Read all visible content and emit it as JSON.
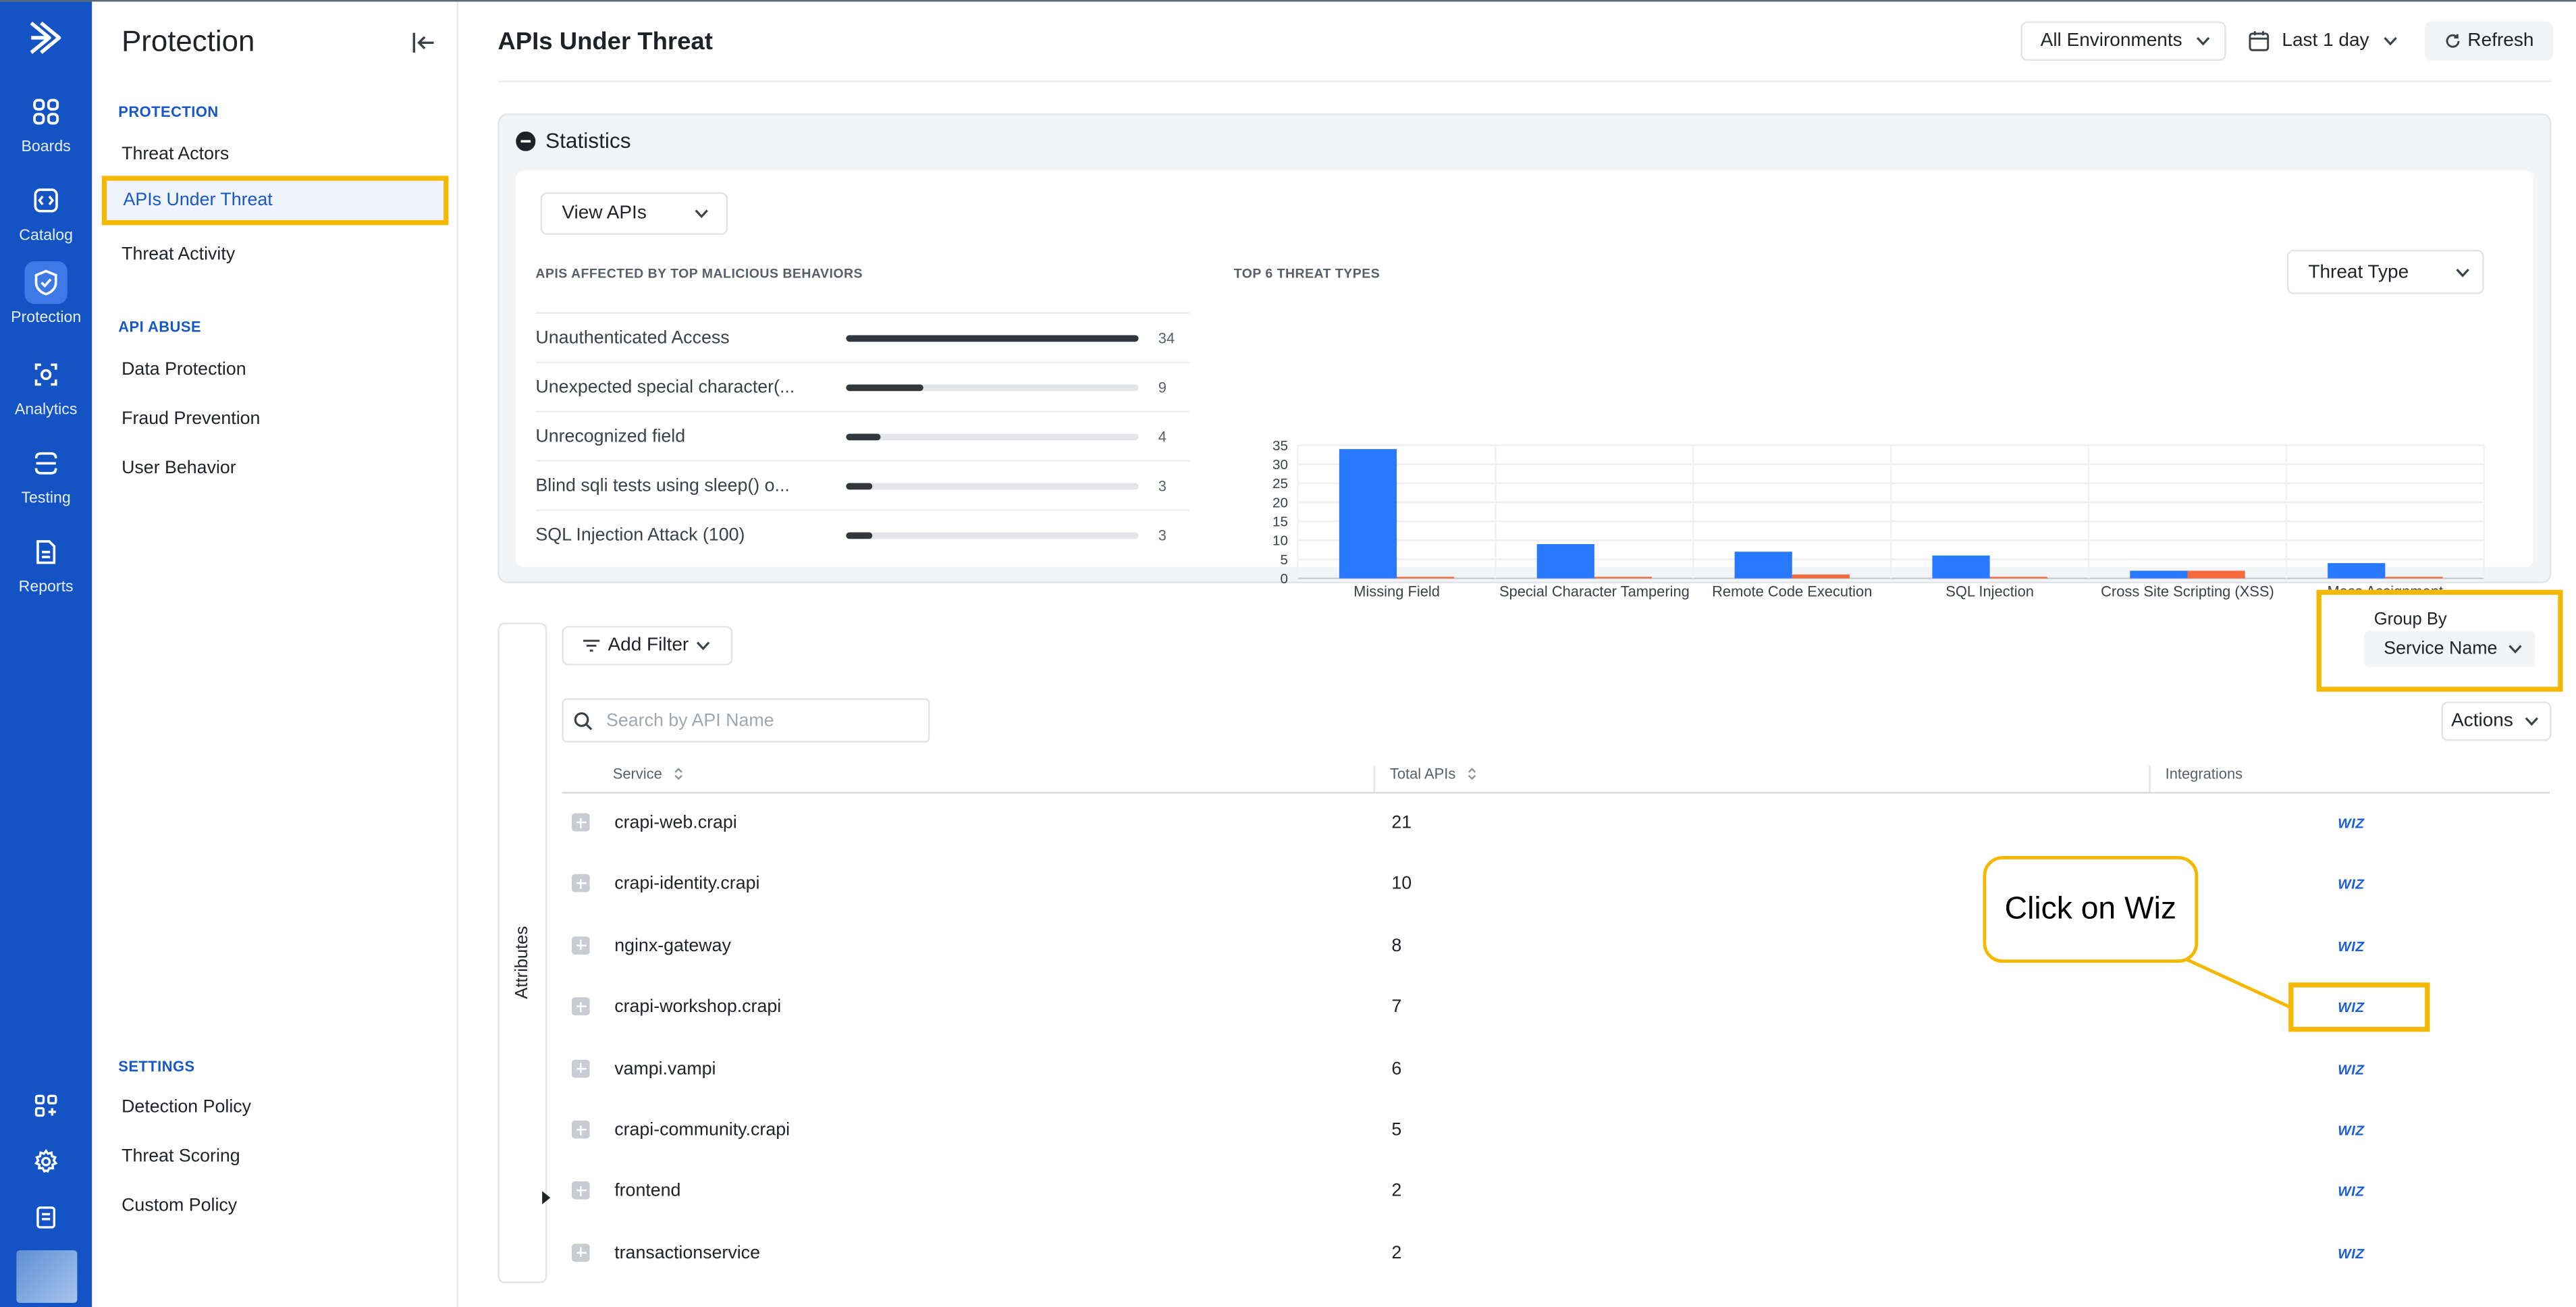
{
  "rail": {
    "items": [
      {
        "label": "Boards",
        "icon": "grid-icon"
      },
      {
        "label": "Catalog",
        "icon": "catalog-icon"
      },
      {
        "label": "Protection",
        "icon": "shield-icon"
      },
      {
        "label": "Analytics",
        "icon": "analytics-icon"
      },
      {
        "label": "Testing",
        "icon": "testing-icon"
      },
      {
        "label": "Reports",
        "icon": "reports-icon"
      }
    ],
    "active": "Protection",
    "bottom_icons": [
      "add-widget-icon",
      "gear-icon",
      "docs-icon"
    ],
    "colors": {
      "rail_bg": "#1453c4",
      "active_bg": "#3d7ae6"
    }
  },
  "sidenav": {
    "title": "Protection",
    "sections": [
      {
        "label": "PROTECTION",
        "items": [
          "Threat Actors",
          "APIs Under Threat",
          "Threat Activity"
        ]
      },
      {
        "label": "API ABUSE",
        "items": [
          "Data Protection",
          "Fraud Prevention",
          "User Behavior"
        ]
      },
      {
        "label": "SETTINGS",
        "items": [
          "Detection Policy",
          "Threat Scoring",
          "Custom Policy"
        ]
      }
    ],
    "active_item": "APIs Under Threat"
  },
  "header": {
    "title": "APIs Under Threat",
    "environment": "All Environments",
    "time_range": "Last 1 day",
    "refresh": "Refresh"
  },
  "statistics": {
    "title": "Statistics",
    "view_select": "View APIs",
    "behaviors_label": "APIS AFFECTED BY TOP MALICIOUS BEHAVIORS",
    "behaviors": [
      {
        "name": "Unauthenticated Access",
        "count": "34",
        "fraction": 1.0
      },
      {
        "name": "Unexpected special character(...",
        "count": "9",
        "fraction": 0.265
      },
      {
        "name": "Unrecognized field",
        "count": "4",
        "fraction": 0.118
      },
      {
        "name": "Blind sqli tests using sleep() o...",
        "count": "3",
        "fraction": 0.088
      },
      {
        "name": "SQL Injection Attack (100)",
        "count": "3",
        "fraction": 0.088
      }
    ],
    "threat_types_label": "TOP 6 THREAT TYPES",
    "threat_type_select": "Threat Type"
  },
  "chart_data": {
    "type": "bar",
    "categories": [
      "Missing Field",
      "Special Character Tampering",
      "Remote Code Execution",
      "SQL Injection",
      "Cross Site Scripting (XSS)",
      "Mass Assignment"
    ],
    "series": [
      {
        "values": [
          34,
          9,
          7,
          6,
          2,
          4
        ],
        "color": "#2979ff"
      },
      {
        "values": [
          0.4,
          0.4,
          1,
          0.4,
          2,
          0.4
        ],
        "color": "#f4511e"
      }
    ],
    "yticks": [
      "0",
      "5",
      "10",
      "15",
      "20",
      "25",
      "30",
      "35"
    ],
    "ylim": [
      0,
      35
    ],
    "grid": true
  },
  "table": {
    "add_filter": "Add Filter",
    "search_placeholder": "Search by API Name",
    "actions": "Actions",
    "group_by_label": "Group By",
    "group_by_value": "Service Name",
    "attributes_tab": "Attributes",
    "columns": [
      "Service",
      "Total APIs",
      "Integrations"
    ],
    "rows": [
      {
        "service": "crapi-web.crapi",
        "total": "21",
        "integration": "WIZ"
      },
      {
        "service": "crapi-identity.crapi",
        "total": "10",
        "integration": "WIZ"
      },
      {
        "service": "nginx-gateway",
        "total": "8",
        "integration": "WIZ"
      },
      {
        "service": "crapi-workshop.crapi",
        "total": "7",
        "integration": "WIZ"
      },
      {
        "service": "vampi.vampi",
        "total": "6",
        "integration": "WIZ"
      },
      {
        "service": "crapi-community.crapi",
        "total": "5",
        "integration": "WIZ"
      },
      {
        "service": "frontend",
        "total": "2",
        "integration": "WIZ"
      },
      {
        "service": "transactionservice",
        "total": "2",
        "integration": "WIZ"
      }
    ]
  },
  "annotation": {
    "callout": "Click on Wiz",
    "highlight_color": "#f5b800"
  }
}
